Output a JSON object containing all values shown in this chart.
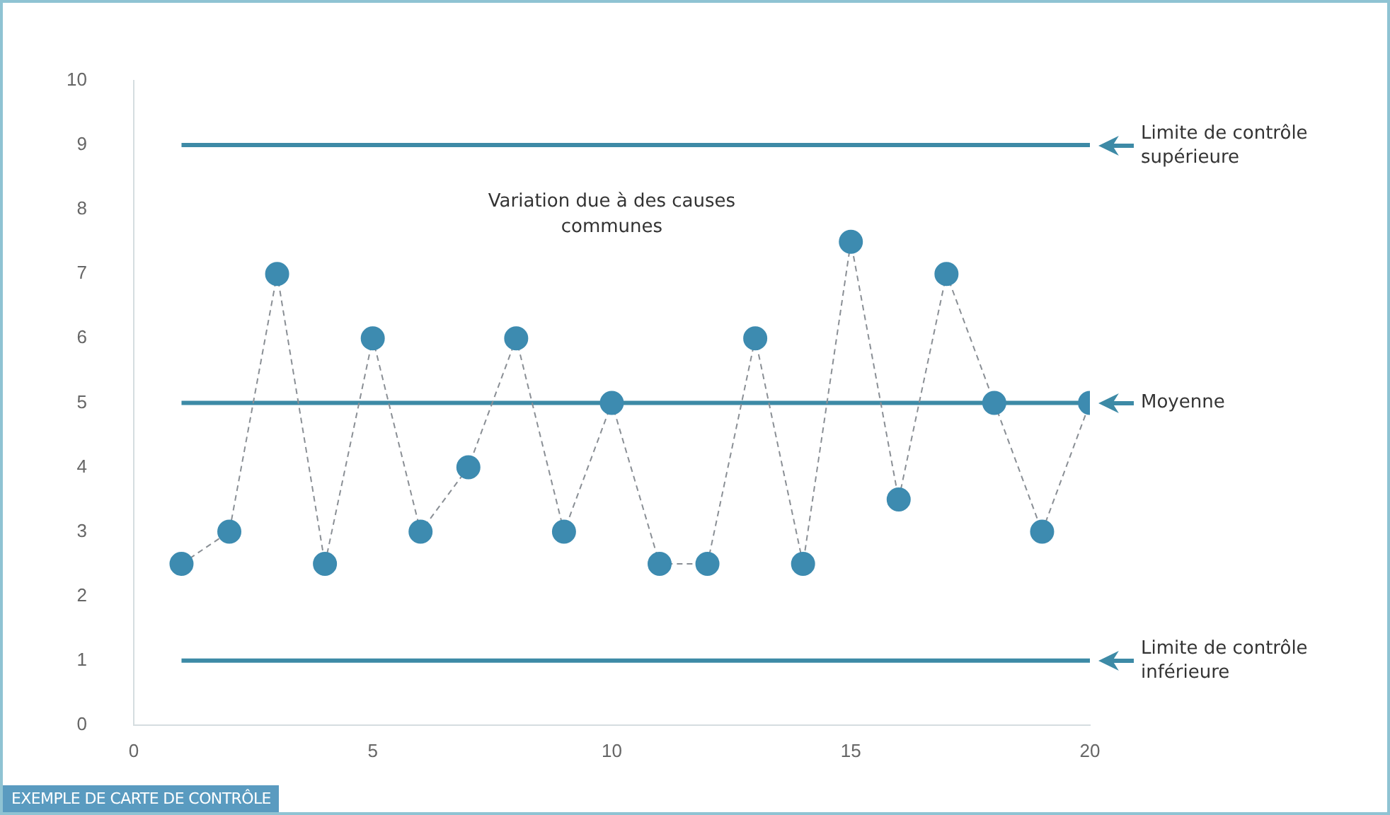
{
  "chart_data": {
    "type": "line",
    "title": "EXEMPLE DE CARTE DE CONTRÔLE",
    "x": [
      1,
      2,
      3,
      4,
      5,
      6,
      7,
      8,
      9,
      10,
      11,
      12,
      13,
      14,
      15,
      16,
      17,
      18,
      19,
      20
    ],
    "series": [
      {
        "color": "#3d8bb0",
        "values": [
          2.5,
          3,
          7,
          2.5,
          6,
          3,
          4,
          6,
          3,
          5,
          2.5,
          2.5,
          6,
          2.5,
          7.5,
          3.5,
          7,
          5,
          3,
          5
        ]
      }
    ],
    "xlim": [
      0,
      20
    ],
    "xticks": [
      0,
      5,
      10,
      15,
      20
    ],
    "ylim": [
      0,
      10
    ],
    "yticks": [
      0,
      1,
      2,
      3,
      4,
      5,
      6,
      7,
      8,
      9,
      10
    ],
    "ref_lines": [
      {
        "axis": "y",
        "value": 9,
        "label": "Limite de contrôle supérieure",
        "color": "#3d8aa6"
      },
      {
        "axis": "y",
        "value": 5,
        "label": "Moyenne",
        "color": "#3d8aa6"
      },
      {
        "axis": "y",
        "value": 1,
        "label": "Limite de contrôle inférieure",
        "color": "#3d8aa6"
      }
    ],
    "annotations": [
      "Variation due à des causes communes"
    ],
    "grid": false,
    "legend": false,
    "marker": "circle",
    "line_style": "dashed"
  }
}
